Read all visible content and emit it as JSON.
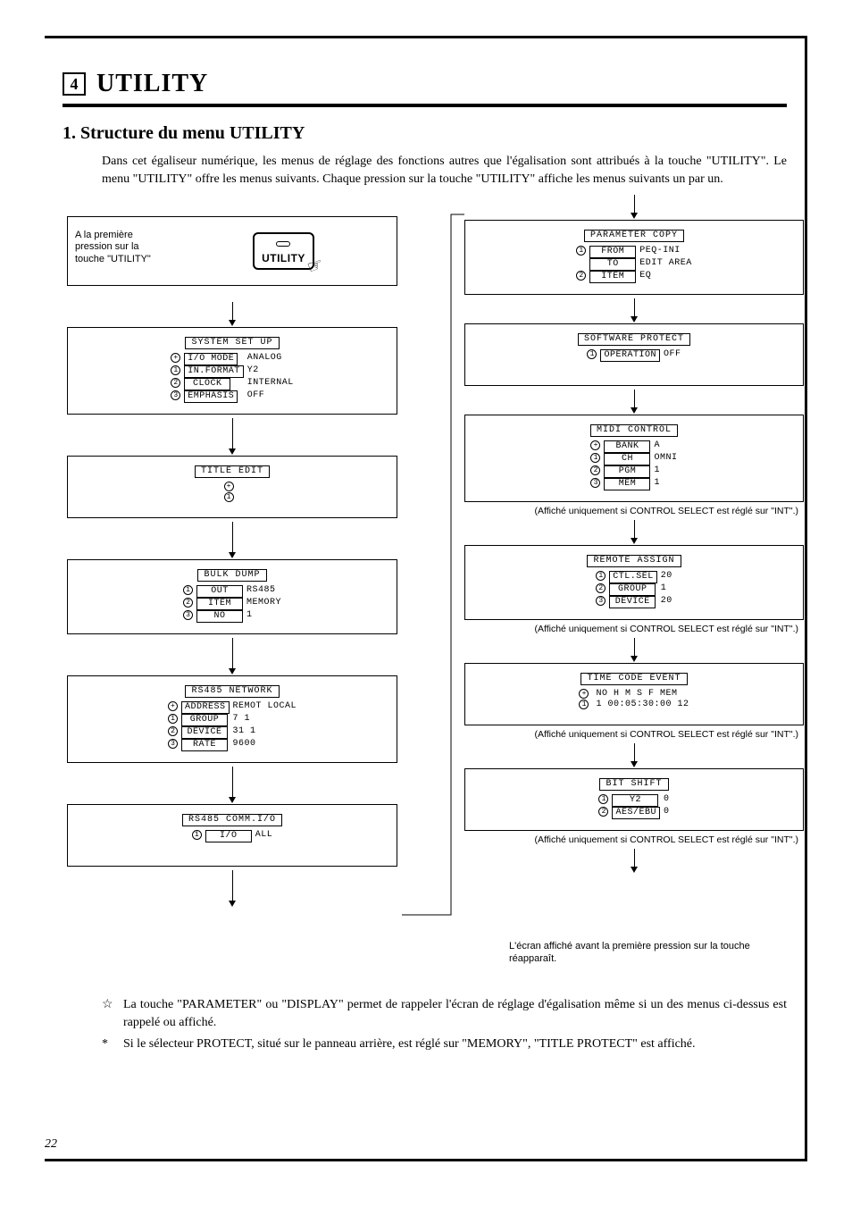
{
  "chapter": {
    "number": "4",
    "title": "UTILITY"
  },
  "section": {
    "title": "1. Structure du menu UTILITY"
  },
  "intro": "Dans cet égaliseur numérique, les menus de réglage des fonctions autres que l'égalisation sont attribués à la touche \"UTILITY\". Le menu \"UTILITY\" offre les menus suivants. Chaque pression sur la touche \"UTILITY\" affiche les menus suivants un par un.",
  "first_press": {
    "text": "A la première pression sur la touche \"UTILITY\"",
    "key_label": "UTILITY"
  },
  "left_screens": [
    {
      "title": "SYSTEM SET UP",
      "rows": [
        {
          "num": "⊕",
          "name": "I/O MODE",
          "val": "ANALOG"
        },
        {
          "num": "①",
          "name": "IN.FORMAT",
          "val": "Y2"
        },
        {
          "num": "②",
          "name": "CLOCK",
          "val": "INTERNAL"
        },
        {
          "num": "③",
          "name": "EMPHASIS",
          "val": "OFF"
        }
      ]
    },
    {
      "title": "TITLE EDIT",
      "rows": [
        {
          "num": "⊕",
          "name": "",
          "val": ""
        },
        {
          "num": "①",
          "name": "",
          "val": ""
        }
      ]
    },
    {
      "title": "BULK DUMP",
      "rows": [
        {
          "num": "①",
          "name": "OUT",
          "val": "RS485"
        },
        {
          "num": "②",
          "name": "ITEM",
          "val": "MEMORY"
        },
        {
          "num": "③",
          "name": "NO",
          "val": "  1"
        }
      ]
    },
    {
      "title": "RS485 NETWORK",
      "rows": [
        {
          "num": "⊕",
          "name": "ADDRESS",
          "val": "REMOT LOCAL"
        },
        {
          "num": "①",
          "name": "GROUP",
          "val": "  7       1"
        },
        {
          "num": "②",
          "name": "DEVICE",
          "val": " 31       1"
        },
        {
          "num": "③",
          "name": "RATE",
          "val": "       9600"
        }
      ]
    },
    {
      "title": "RS485 COMM.I/O",
      "rows": [
        {
          "num": "①",
          "name": "I/O",
          "val": "ALL"
        }
      ]
    }
  ],
  "right_screens": [
    {
      "title": "PARAMETER COPY",
      "rows": [
        {
          "num": "①",
          "name": "FROM",
          "val": "PEQ-INI"
        },
        {
          "num": "",
          "name": "TO",
          "val": "EDIT AREA"
        },
        {
          "num": "②",
          "name": "ITEM",
          "val": "EQ"
        }
      ],
      "note": ""
    },
    {
      "title": "SOFTWARE PROTECT",
      "rows": [
        {
          "num": "①",
          "name": "OPERATION",
          "val": "OFF"
        }
      ],
      "note": ""
    },
    {
      "title": "MIDI CONTROL",
      "rows": [
        {
          "num": "⊕",
          "name": "BANK",
          "val": "A"
        },
        {
          "num": "①",
          "name": "CH",
          "val": "OMNI"
        },
        {
          "num": "②",
          "name": "PGM",
          "val": "  1"
        },
        {
          "num": "③",
          "name": "MEM",
          "val": "  1"
        }
      ],
      "note": "(Affiché uniquement si CONTROL SELECT est réglé sur \"INT\".)"
    },
    {
      "title": "REMOTE ASSIGN",
      "rows": [
        {
          "num": "①",
          "name": "CTL.SEL",
          "val": "20"
        },
        {
          "num": "②",
          "name": "GROUP",
          "val": " 1"
        },
        {
          "num": "③",
          "name": "DEVICE",
          "val": "20"
        }
      ],
      "note": "(Affiché uniquement si CONTROL SELECT est réglé sur \"INT\".)"
    },
    {
      "title": "TIME CODE EVENT",
      "rows": [
        {
          "num": "⊕",
          "name": "",
          "val": "NO  H   M   S   F MEM"
        },
        {
          "num": "①",
          "name": "",
          "val": " 1 00:05:30:00 12"
        }
      ],
      "note": "(Affiché uniquement si CONTROL SELECT est réglé sur \"INT\".)"
    },
    {
      "title": "BIT SHIFT",
      "rows": [
        {
          "num": "①",
          "name": "Y2",
          "val": "0"
        },
        {
          "num": "②",
          "name": "AES/EBU",
          "val": "0"
        }
      ],
      "note": "(Affiché uniquement si CONTROL SELECT est réglé sur \"INT\".)"
    }
  ],
  "final_note": "L'écran affiché avant la première pression sur la touche réapparaît.",
  "footnotes": [
    {
      "mark": "☆",
      "text": "La touche \"PARAMETER\" ou \"DISPLAY\" permet de rappeler l'écran de réglage d'égalisation même si un des menus ci-dessus est rappelé ou affiché."
    },
    {
      "mark": "*",
      "text": "Si le sélecteur PROTECT, situé sur le panneau arrière, est réglé sur \"MEMORY\", \"TITLE PROTECT\" est affiché."
    }
  ],
  "page_number": "22"
}
